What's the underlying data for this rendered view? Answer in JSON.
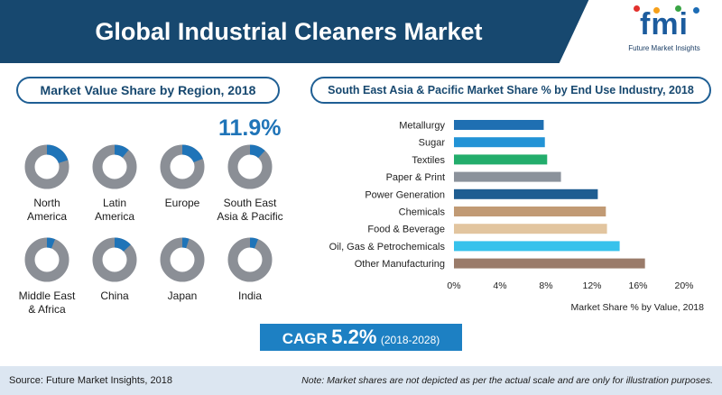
{
  "header": {
    "title": "Global Industrial Cleaners Market"
  },
  "logo": {
    "word": "fmi",
    "subtitle": "Future Market Insights"
  },
  "region_section": {
    "title": "Market Value Share by Region, 2018",
    "highlight_value": "11.9%",
    "regions": [
      {
        "label": "North America",
        "share": 0.2
      },
      {
        "label": "Latin America",
        "share": 0.11
      },
      {
        "label": "Europe",
        "share": 0.19
      },
      {
        "label": "South East Asia & Pacific",
        "share": 0.119
      },
      {
        "label": "Middle East & Africa",
        "share": 0.06
      },
      {
        "label": "China",
        "share": 0.13
      },
      {
        "label": "Japan",
        "share": 0.05
      },
      {
        "label": "India",
        "share": 0.06
      }
    ]
  },
  "industry_section": {
    "title": "South East Asia & Pacific Market Share % by End Use Industry, 2018"
  },
  "chart_data": {
    "type": "bar",
    "orientation": "horizontal",
    "categories": [
      "Metallurgy",
      "Sugar",
      "Textiles",
      "Paper & Print",
      "Power Generation",
      "Chemicals",
      "Food & Beverage",
      "Oil, Gas & Petrochemicals",
      "Other Manufacturing"
    ],
    "values": [
      7.8,
      7.9,
      8.1,
      9.3,
      12.5,
      13.2,
      13.3,
      14.4,
      16.6
    ],
    "bar_colors": [
      "#1f6fb2",
      "#2293d6",
      "#23ad6c",
      "#8b929b",
      "#1e5d91",
      "#c19a74",
      "#e2c59f",
      "#36c2ec",
      "#9a7b6a"
    ],
    "xlim": [
      0,
      20
    ],
    "x_ticks": [
      "0%",
      "4%",
      "8%",
      "12%",
      "16%",
      "20%"
    ],
    "xlabel": "Market Share % by Value, 2018",
    "ylabel": "",
    "title": "South East Asia & Pacific Market Share % by End Use Industry, 2018",
    "grid": false
  },
  "cagr": {
    "label": "CAGR",
    "value": "5.2%",
    "period": "(2018-2028)"
  },
  "footer": {
    "source": "Source: Future Market Insights, 2018",
    "note": "Note: Market shares are not depicted as per the actual scale and are only for illustration purposes."
  },
  "colors": {
    "header_bg": "#17486f",
    "accent_blue": "#1f74b8",
    "donut_base": "#8b8f96",
    "donut_highlight": "#1f74b8",
    "footer_bg": "#dce6f1"
  }
}
